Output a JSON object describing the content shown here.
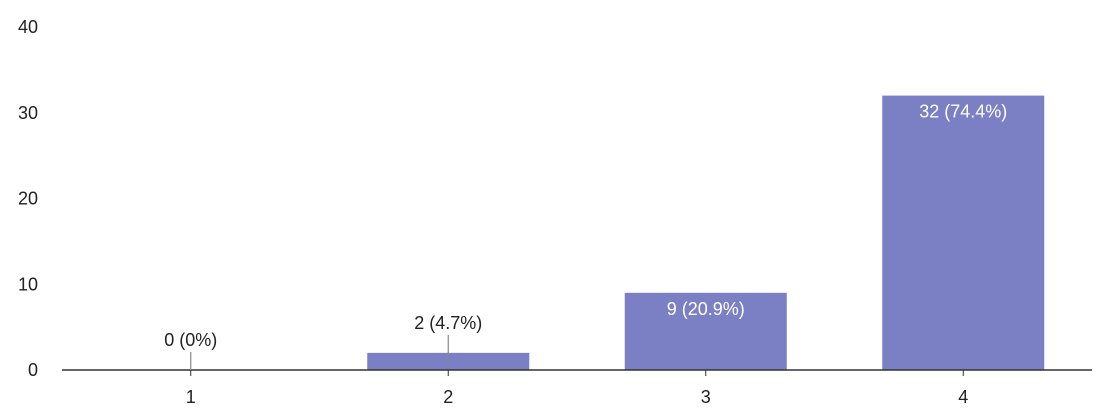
{
  "chart_data": {
    "type": "bar",
    "categories": [
      "1",
      "2",
      "3",
      "4"
    ],
    "values": [
      0,
      2,
      9,
      32
    ],
    "data_labels": [
      "0 (0%)",
      "2 (4.7%)",
      "9 (20.9%)",
      "32 (74.4%)"
    ],
    "ylim": [
      0,
      40
    ],
    "yticks": [
      0,
      10,
      20,
      30,
      40
    ],
    "ytick_labels": [
      "0",
      "10",
      "20",
      "30",
      "40"
    ],
    "grid": false,
    "legend": "none",
    "title": "",
    "xlabel": "",
    "ylabel": "",
    "colors": {
      "bar": "#7b7fc4",
      "axis": "#333333",
      "label_inside": "#ffffff",
      "label_outside": "#222222",
      "leader": "#888888"
    }
  }
}
